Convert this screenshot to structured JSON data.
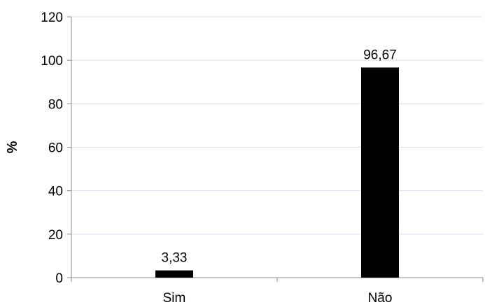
{
  "chart_data": {
    "type": "bar",
    "categories": [
      "Sim",
      "Não"
    ],
    "values": [
      3.33,
      96.67
    ],
    "data_labels": [
      "3,33",
      "96,67"
    ],
    "title": "",
    "xlabel": "",
    "ylabel": "%",
    "ylim": [
      0,
      120
    ],
    "yticks": [
      0,
      20,
      40,
      60,
      80,
      100,
      120
    ],
    "ytick_labels": [
      "0",
      "20",
      "40",
      "60",
      "80",
      "100",
      "120"
    ],
    "grid": true,
    "legend": "none",
    "colors": {
      "bar": "#000000",
      "grid": "#d9e3ef",
      "axis": "#8c8c8c",
      "text": "#000000"
    }
  }
}
